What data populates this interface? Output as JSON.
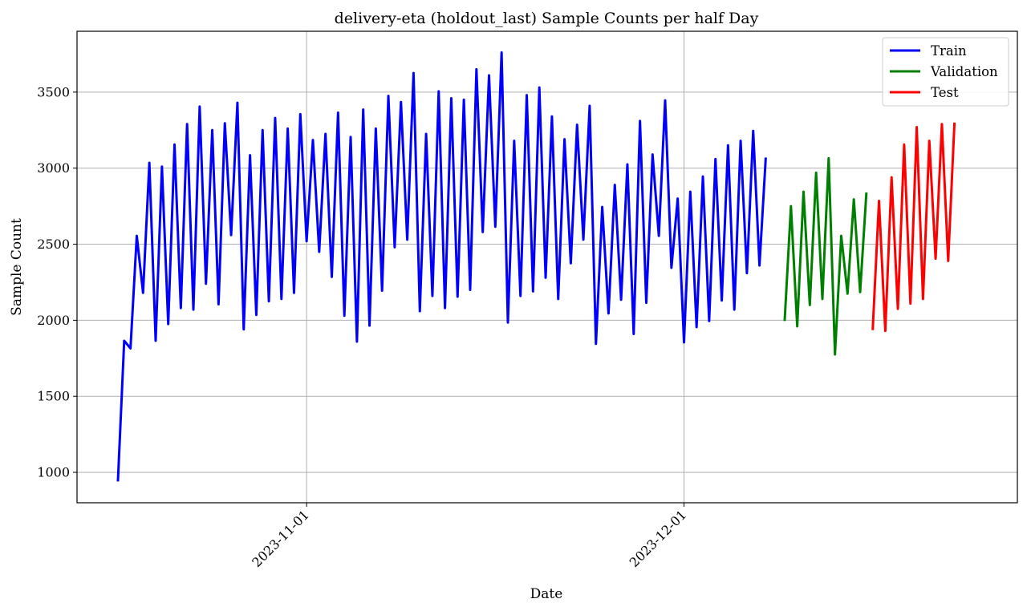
{
  "chart_data": {
    "type": "line",
    "title": "delivery-eta (holdout_last) Sample Counts per half Day",
    "xlabel": "Date",
    "ylabel": "Sample Count",
    "x_start": "2023-10-17 00:00",
    "x_step_hours": 12,
    "xlim": [
      "2023-10-13 18:00",
      "2023-12-27 12:00"
    ],
    "ylim": [
      800,
      3900
    ],
    "xticks": [
      "2023-11-01",
      "2023-12-01"
    ],
    "yticks": [
      1000,
      1500,
      2000,
      2500,
      3000,
      3500
    ],
    "grid": true,
    "legend_position": "top-right",
    "series": [
      {
        "name": "Train",
        "color": "#0000ff",
        "x_start": "2023-10-17 00:00",
        "values": [
          940,
          1865,
          1815,
          2555,
          2180,
          3035,
          1865,
          3010,
          1975,
          3155,
          2080,
          3290,
          2070,
          3405,
          2240,
          3250,
          2105,
          3295,
          2560,
          3430,
          1940,
          3085,
          2035,
          3250,
          2125,
          3330,
          2140,
          3260,
          2180,
          3355,
          2520,
          3185,
          2450,
          3225,
          2285,
          3365,
          2030,
          3205,
          1860,
          3385,
          1965,
          3260,
          2195,
          3475,
          2480,
          3435,
          2530,
          3625,
          2060,
          3225,
          2160,
          3505,
          2080,
          3460,
          2155,
          3450,
          2200,
          3650,
          2580,
          3610,
          2615,
          3760,
          1985,
          3180,
          2160,
          3480,
          2190,
          3530,
          2280,
          3340,
          2140,
          3190,
          2375,
          3285,
          2530,
          3410,
          1845,
          2745,
          2045,
          2890,
          2135,
          3025,
          1910,
          3310,
          2115,
          3090,
          2555,
          3445,
          2345,
          2800,
          1855,
          2845,
          1955,
          2945,
          1995,
          3060,
          2130,
          3150,
          2070,
          3180,
          2310,
          3245,
          2360,
          3070
        ]
      },
      {
        "name": "Validation",
        "color": "#008000",
        "x_start": "2023-12-09 00:00",
        "values": [
          1995,
          2750,
          1960,
          2845,
          2100,
          2970,
          2140,
          3065,
          1775,
          2555,
          2175,
          2795,
          2185,
          2840
        ]
      },
      {
        "name": "Test",
        "color": "#ff0000",
        "x_start": "2023-12-16 00:00",
        "values": [
          1935,
          2785,
          1930,
          2940,
          2075,
          3155,
          2110,
          3270,
          2140,
          3180,
          2405,
          3290,
          2390,
          3300
        ]
      }
    ]
  }
}
